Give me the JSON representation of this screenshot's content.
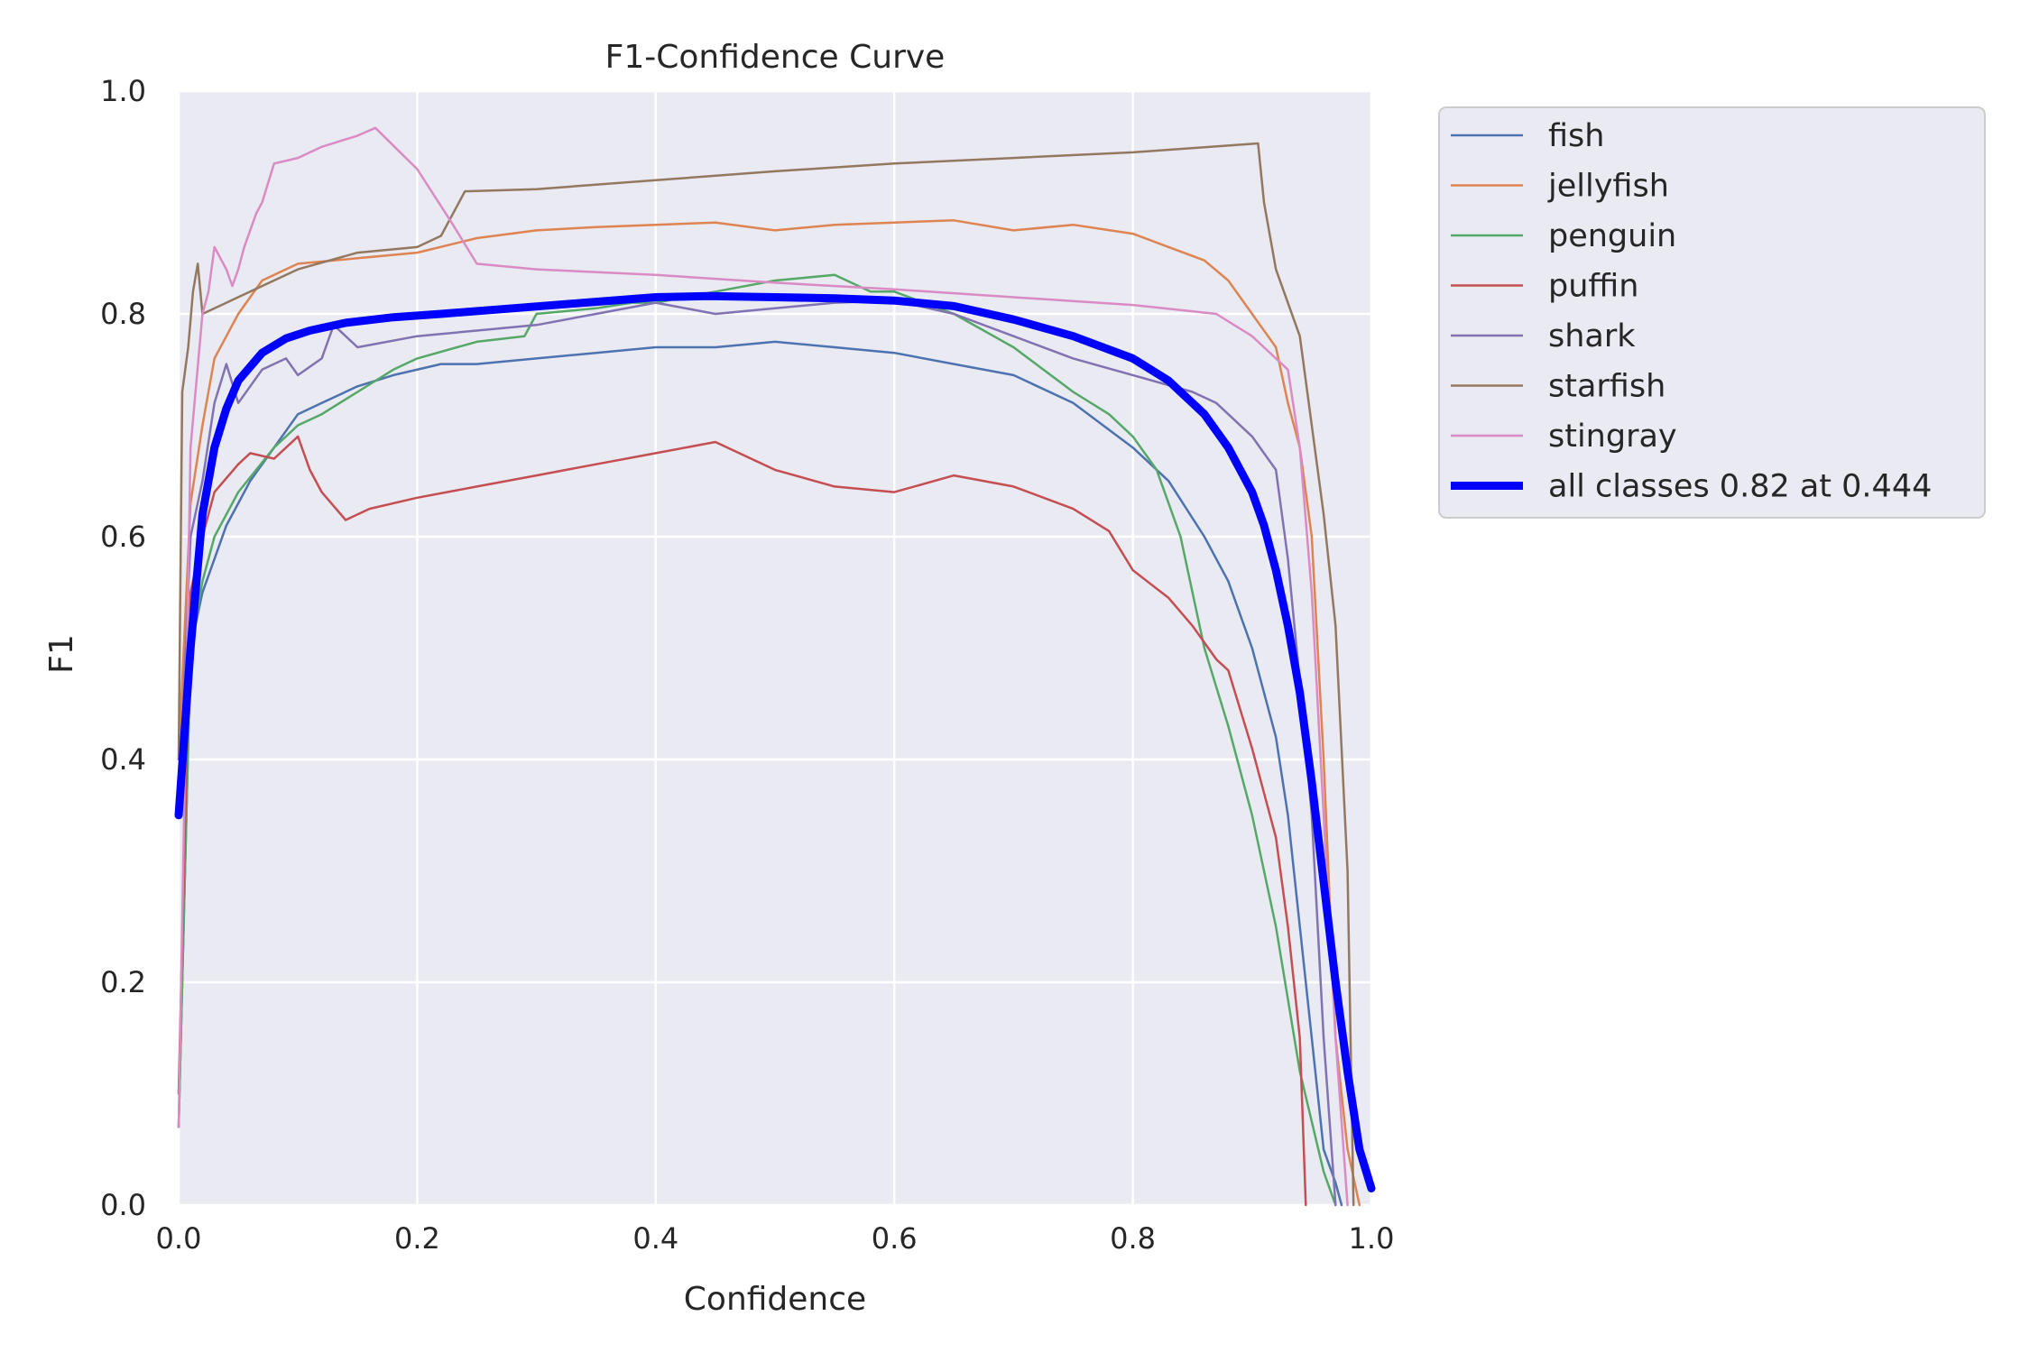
{
  "chart_data": {
    "type": "line",
    "title": "F1-Confidence Curve",
    "xlabel": "Confidence",
    "ylabel": "F1",
    "xlim": [
      0,
      1
    ],
    "ylim": [
      0,
      1
    ],
    "xticks": [
      "0.0",
      "0.2",
      "0.4",
      "0.6",
      "0.8",
      "1.0"
    ],
    "yticks": [
      "0.0",
      "0.2",
      "0.4",
      "0.6",
      "0.8",
      "1.0"
    ],
    "grid": true,
    "legend_position": "outside-upper-right",
    "series": [
      {
        "name": "fish",
        "color": "#4c72b0",
        "bold": false,
        "x": [
          0,
          0.01,
          0.02,
          0.03,
          0.04,
          0.06,
          0.08,
          0.1,
          0.12,
          0.15,
          0.18,
          0.22,
          0.25,
          0.3,
          0.35,
          0.4,
          0.45,
          0.5,
          0.55,
          0.6,
          0.65,
          0.7,
          0.75,
          0.8,
          0.83,
          0.86,
          0.88,
          0.9,
          0.92,
          0.93,
          0.94,
          0.95,
          0.96,
          0.97,
          0.975
        ],
        "y": [
          0.07,
          0.5,
          0.55,
          0.58,
          0.61,
          0.65,
          0.68,
          0.71,
          0.72,
          0.735,
          0.745,
          0.755,
          0.755,
          0.76,
          0.765,
          0.77,
          0.77,
          0.775,
          0.77,
          0.765,
          0.755,
          0.745,
          0.72,
          0.68,
          0.65,
          0.6,
          0.56,
          0.5,
          0.42,
          0.35,
          0.25,
          0.15,
          0.05,
          0.02,
          0.0
        ]
      },
      {
        "name": "jellyfish",
        "color": "#dd8452",
        "bold": false,
        "x": [
          0,
          0.01,
          0.02,
          0.03,
          0.05,
          0.07,
          0.1,
          0.15,
          0.2,
          0.25,
          0.3,
          0.35,
          0.4,
          0.45,
          0.5,
          0.55,
          0.6,
          0.65,
          0.7,
          0.75,
          0.8,
          0.83,
          0.86,
          0.88,
          0.9,
          0.92,
          0.93,
          0.94,
          0.95,
          0.96,
          0.97,
          0.98,
          0.99
        ],
        "y": [
          0.4,
          0.63,
          0.7,
          0.76,
          0.8,
          0.83,
          0.845,
          0.85,
          0.855,
          0.868,
          0.875,
          0.878,
          0.88,
          0.882,
          0.875,
          0.88,
          0.882,
          0.884,
          0.875,
          0.88,
          0.872,
          0.86,
          0.848,
          0.83,
          0.8,
          0.77,
          0.72,
          0.68,
          0.6,
          0.4,
          0.15,
          0.05,
          0.0
        ]
      },
      {
        "name": "penguin",
        "color": "#55a868",
        "bold": false,
        "x": [
          0,
          0.01,
          0.02,
          0.03,
          0.05,
          0.08,
          0.1,
          0.12,
          0.15,
          0.18,
          0.2,
          0.25,
          0.29,
          0.3,
          0.35,
          0.38,
          0.4,
          0.45,
          0.5,
          0.55,
          0.58,
          0.6,
          0.65,
          0.7,
          0.75,
          0.78,
          0.8,
          0.82,
          0.84,
          0.86,
          0.88,
          0.9,
          0.92,
          0.94,
          0.96,
          0.97
        ],
        "y": [
          0.07,
          0.5,
          0.56,
          0.6,
          0.64,
          0.68,
          0.7,
          0.71,
          0.73,
          0.75,
          0.76,
          0.775,
          0.78,
          0.8,
          0.805,
          0.81,
          0.81,
          0.82,
          0.83,
          0.835,
          0.82,
          0.82,
          0.8,
          0.77,
          0.73,
          0.71,
          0.69,
          0.66,
          0.6,
          0.5,
          0.43,
          0.35,
          0.25,
          0.12,
          0.03,
          0.0
        ]
      },
      {
        "name": "puffin",
        "color": "#c44e52",
        "bold": false,
        "x": [
          0,
          0.01,
          0.02,
          0.03,
          0.05,
          0.06,
          0.08,
          0.1,
          0.11,
          0.12,
          0.14,
          0.16,
          0.2,
          0.25,
          0.3,
          0.35,
          0.4,
          0.45,
          0.5,
          0.55,
          0.6,
          0.65,
          0.7,
          0.75,
          0.78,
          0.8,
          0.83,
          0.85,
          0.87,
          0.88,
          0.9,
          0.92,
          0.93,
          0.94,
          0.945
        ],
        "y": [
          0.1,
          0.55,
          0.6,
          0.64,
          0.665,
          0.675,
          0.67,
          0.69,
          0.66,
          0.64,
          0.615,
          0.625,
          0.635,
          0.645,
          0.655,
          0.665,
          0.675,
          0.685,
          0.66,
          0.645,
          0.64,
          0.655,
          0.645,
          0.625,
          0.605,
          0.57,
          0.545,
          0.52,
          0.49,
          0.48,
          0.41,
          0.33,
          0.25,
          0.15,
          0.0
        ]
      },
      {
        "name": "shark",
        "color": "#8172b2",
        "bold": false,
        "x": [
          0,
          0.01,
          0.02,
          0.03,
          0.04,
          0.05,
          0.07,
          0.09,
          0.1,
          0.12,
          0.13,
          0.15,
          0.2,
          0.25,
          0.3,
          0.35,
          0.4,
          0.45,
          0.5,
          0.55,
          0.6,
          0.65,
          0.7,
          0.75,
          0.8,
          0.85,
          0.87,
          0.88,
          0.9,
          0.92,
          0.93,
          0.94,
          0.95,
          0.96,
          0.97
        ],
        "y": [
          0.35,
          0.6,
          0.65,
          0.72,
          0.755,
          0.72,
          0.75,
          0.76,
          0.745,
          0.76,
          0.79,
          0.77,
          0.78,
          0.785,
          0.79,
          0.8,
          0.81,
          0.8,
          0.805,
          0.81,
          0.812,
          0.8,
          0.78,
          0.76,
          0.745,
          0.73,
          0.72,
          0.71,
          0.69,
          0.66,
          0.58,
          0.47,
          0.35,
          0.15,
          0.0
        ]
      },
      {
        "name": "starfish",
        "color": "#937860",
        "bold": false,
        "x": [
          0,
          0.003,
          0.008,
          0.012,
          0.016,
          0.02,
          0.06,
          0.1,
          0.15,
          0.2,
          0.22,
          0.24,
          0.3,
          0.4,
          0.5,
          0.6,
          0.7,
          0.8,
          0.905,
          0.91,
          0.92,
          0.94,
          0.95,
          0.96,
          0.97,
          0.98,
          0.985
        ],
        "y": [
          0.4,
          0.73,
          0.77,
          0.82,
          0.845,
          0.8,
          0.82,
          0.84,
          0.855,
          0.86,
          0.87,
          0.91,
          0.912,
          0.92,
          0.928,
          0.935,
          0.94,
          0.945,
          0.953,
          0.9,
          0.84,
          0.78,
          0.7,
          0.62,
          0.52,
          0.3,
          0.0
        ]
      },
      {
        "name": "stingray",
        "color": "#da8bc3",
        "bold": false,
        "x": [
          0,
          0.01,
          0.02,
          0.025,
          0.03,
          0.04,
          0.045,
          0.05,
          0.055,
          0.06,
          0.065,
          0.07,
          0.08,
          0.1,
          0.12,
          0.15,
          0.165,
          0.2,
          0.23,
          0.25,
          0.3,
          0.4,
          0.5,
          0.6,
          0.7,
          0.8,
          0.87,
          0.9,
          0.93,
          0.94,
          0.95,
          0.96,
          0.97,
          0.98
        ],
        "y": [
          0.07,
          0.68,
          0.8,
          0.82,
          0.86,
          0.84,
          0.825,
          0.84,
          0.86,
          0.875,
          0.89,
          0.9,
          0.935,
          0.94,
          0.95,
          0.96,
          0.967,
          0.93,
          0.88,
          0.845,
          0.84,
          0.835,
          0.828,
          0.822,
          0.815,
          0.808,
          0.8,
          0.78,
          0.75,
          0.68,
          0.55,
          0.35,
          0.15,
          0.0
        ]
      },
      {
        "name": "all classes 0.82 at 0.444",
        "color": "#0000ff",
        "bold": true,
        "x": [
          0,
          0.01,
          0.02,
          0.03,
          0.04,
          0.05,
          0.07,
          0.09,
          0.11,
          0.14,
          0.18,
          0.22,
          0.28,
          0.34,
          0.4,
          0.444,
          0.5,
          0.55,
          0.6,
          0.65,
          0.7,
          0.75,
          0.8,
          0.83,
          0.86,
          0.88,
          0.9,
          0.91,
          0.92,
          0.93,
          0.94,
          0.95,
          0.96,
          0.97,
          0.98,
          0.99,
          1.0
        ],
        "y": [
          0.35,
          0.5,
          0.62,
          0.68,
          0.715,
          0.74,
          0.765,
          0.778,
          0.785,
          0.792,
          0.797,
          0.8,
          0.805,
          0.81,
          0.815,
          0.816,
          0.815,
          0.814,
          0.812,
          0.807,
          0.795,
          0.78,
          0.76,
          0.74,
          0.71,
          0.68,
          0.64,
          0.61,
          0.57,
          0.52,
          0.46,
          0.38,
          0.29,
          0.2,
          0.12,
          0.05,
          0.015
        ]
      }
    ]
  }
}
